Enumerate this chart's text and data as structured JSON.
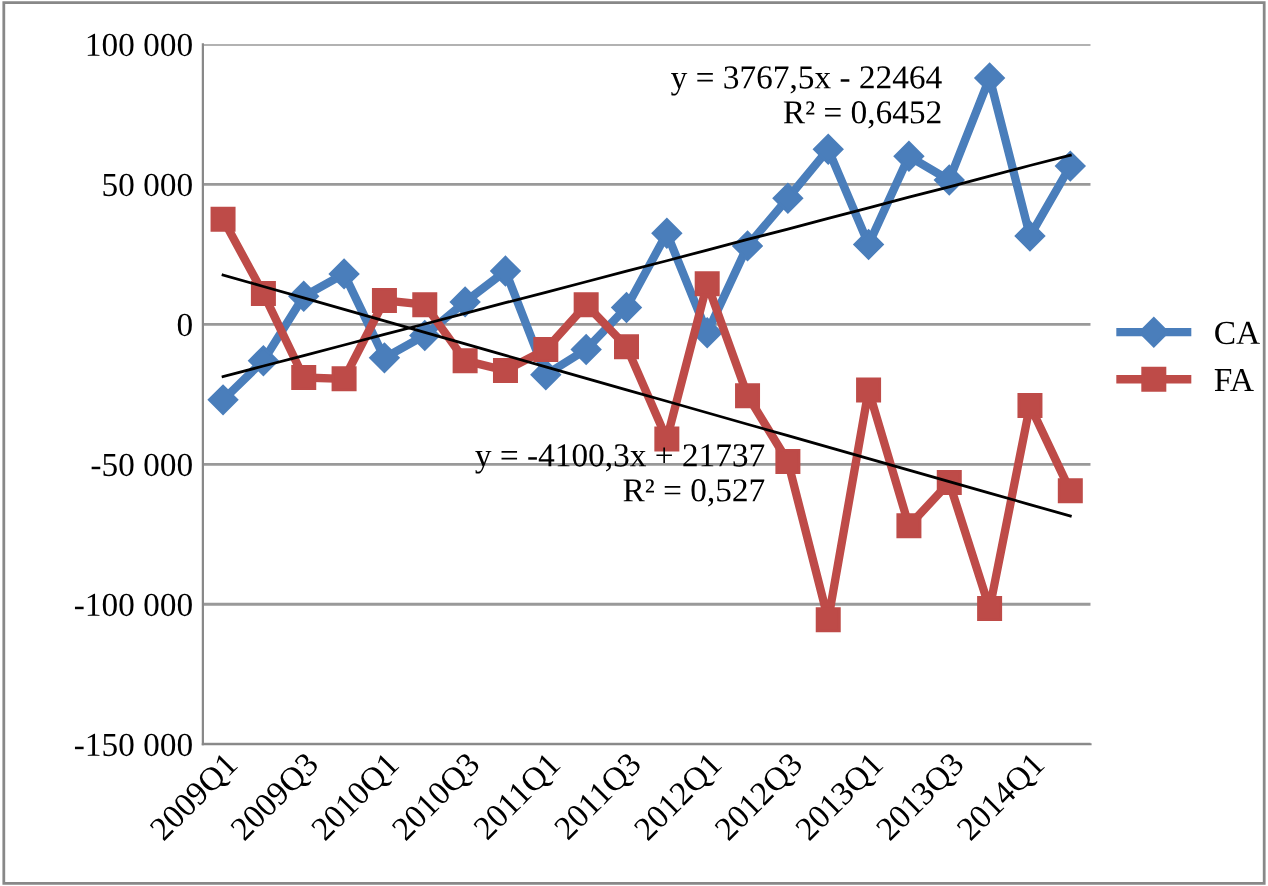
{
  "chart_data": {
    "type": "line",
    "categories": [
      "2009Q1",
      null,
      "2009Q3",
      null,
      "2010Q1",
      null,
      "2010Q3",
      null,
      "2011Q1",
      null,
      "2011Q3",
      null,
      "2012Q1",
      null,
      "2012Q3",
      null,
      "2013Q1",
      null,
      "2013Q3",
      null,
      "2014Q1",
      null
    ],
    "series": [
      {
        "name": "CA",
        "color": "#4a7ebb",
        "marker": "diamond",
        "values": [
          -27000,
          -13000,
          10000,
          18000,
          -12000,
          -4000,
          8000,
          19000,
          -18000,
          -9000,
          6000,
          32500,
          -3000,
          28000,
          45000,
          62500,
          28500,
          60000,
          51500,
          88000,
          31500,
          56500
        ]
      },
      {
        "name": "FA",
        "color": "#be4b48",
        "marker": "square",
        "values": [
          37500,
          11000,
          -19000,
          -19500,
          8500,
          7000,
          -13000,
          -16500,
          -9000,
          7000,
          -8000,
          -41000,
          14500,
          -25500,
          -49000,
          -105500,
          -23500,
          -72000,
          -56500,
          -101500,
          -29000,
          -59500
        ]
      },
      {
        "color": "#000000",
        "marker": "none",
        "values": [
          -18700,
          -14900,
          -11200,
          -7400,
          -3600,
          100,
          3900,
          7700,
          11400,
          15200,
          19000,
          22700,
          26500,
          30300,
          34000,
          37800,
          41600,
          45400,
          49100,
          52900,
          56700,
          60400
        ]
      },
      {
        "color": "#000000",
        "marker": "none",
        "values": [
          17600,
          13500,
          9400,
          5300,
          1200,
          -2900,
          -7000,
          -11100,
          -15200,
          -19300,
          -23400,
          -27500,
          -31600,
          -35700,
          -39800,
          -43900,
          -48000,
          -52100,
          -56200,
          -60300,
          -64400,
          -68500
        ]
      }
    ],
    "annotations": [
      "y = 3767,5x - 22464\nR² = 0,6452",
      "y = -4100,3x + 21737\nR² = 0,527"
    ],
    "ylim": [
      -150000,
      100000
    ],
    "yticks": [
      {
        "value": -150000,
        "label": "-150 000"
      },
      {
        "value": -100000,
        "label": "-100 000"
      },
      {
        "value": -50000,
        "label": "-50 000"
      },
      {
        "value": 0,
        "label": "0"
      },
      {
        "value": 50000,
        "label": "50 000"
      },
      {
        "value": 100000,
        "label": "100 000"
      }
    ],
    "grid": "y",
    "legend": "right",
    "line_style": "solid"
  }
}
